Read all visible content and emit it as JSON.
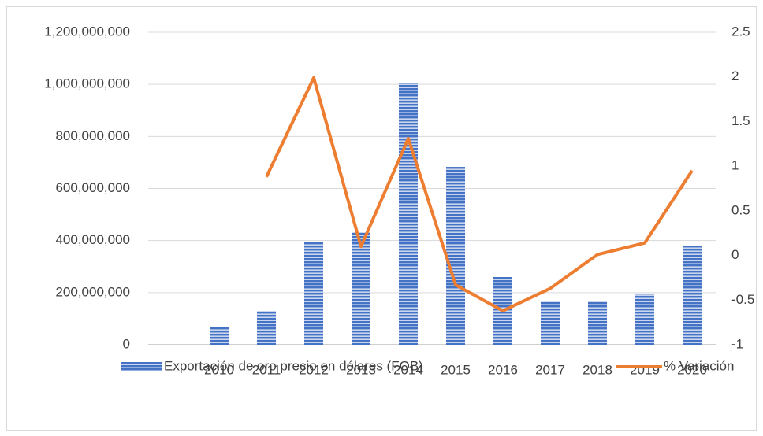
{
  "chart_data": {
    "type": "bar_line",
    "categories": [
      null,
      "2010",
      "2011",
      "2012",
      "2013",
      "2014",
      "2015",
      "2016",
      "2017",
      "2018",
      "2019",
      "2020"
    ],
    "series": [
      {
        "name": "Exportación de oro precio en dólares (FOB)",
        "color": "#4472c4",
        "type": "bar",
        "values": [
          null,
          69000000,
          130000000,
          393000000,
          432000000,
          1005000000,
          683000000,
          260000000,
          166000000,
          169000000,
          193000000,
          378000000
        ]
      },
      {
        "name": "% Variación",
        "color": "#ed7d31",
        "type": "line",
        "axis": "y2",
        "values": [
          null,
          null,
          0.88,
          1.99,
          0.1,
          1.31,
          -0.33,
          -0.62,
          -0.37,
          0.01,
          0.14,
          0.95
        ]
      }
    ],
    "ylim": [
      0,
      1200000000
    ],
    "yticks": [
      {
        "value": 0,
        "label": "0"
      },
      {
        "value": 200000000,
        "label": "200,000,000"
      },
      {
        "value": 400000000,
        "label": "400,000,000"
      },
      {
        "value": 600000000,
        "label": "600,000,000"
      },
      {
        "value": 800000000,
        "label": "800,000,000"
      },
      {
        "value": 1000000000,
        "label": "1,000,000,000"
      },
      {
        "value": 1200000000,
        "label": "1,200,000,000"
      }
    ],
    "y2lim": [
      -1,
      2.5
    ],
    "y2ticks": [
      -1,
      -0.5,
      0,
      0.5,
      1,
      1.5,
      2,
      2.5
    ],
    "grid": true,
    "legend": "bottom"
  }
}
